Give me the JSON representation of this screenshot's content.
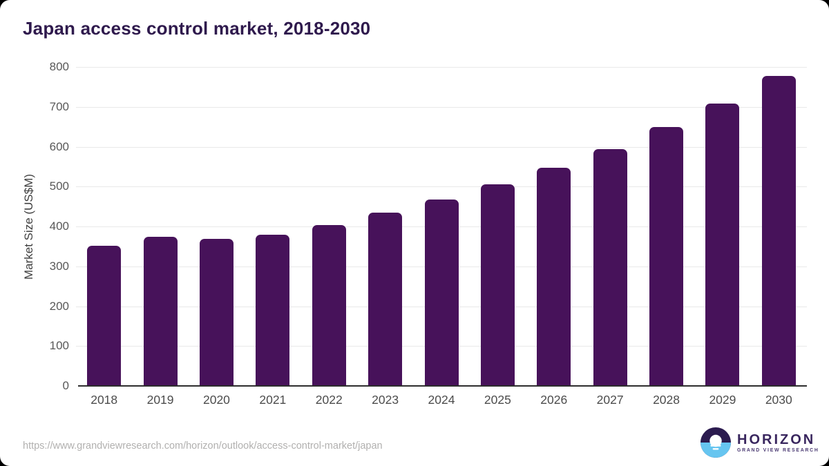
{
  "title": "Japan access control market, 2018-2030",
  "chart_data": {
    "type": "bar",
    "title": "Japan access control market, 2018-2030",
    "categories": [
      "2018",
      "2019",
      "2020",
      "2021",
      "2022",
      "2023",
      "2024",
      "2025",
      "2026",
      "2027",
      "2028",
      "2029",
      "2030"
    ],
    "values": [
      350,
      372,
      367,
      378,
      402,
      433,
      465,
      504,
      545,
      593,
      647,
      706,
      775
    ],
    "xlabel": "",
    "ylabel": "Market Size (US$M)",
    "ylim": [
      0,
      800
    ],
    "yticks": [
      0,
      100,
      200,
      300,
      400,
      500,
      600,
      700,
      800
    ],
    "grid": true,
    "legend": false,
    "bar_color": "#47125a"
  },
  "colors": {
    "bar": "#47125a",
    "title_text": "#2f1a4d",
    "axis_text": "#585858",
    "gridline": "#e9e9e9",
    "axis_line": "#2d2d2d",
    "url_text": "#b1b0af",
    "logo_dark": "#2b1b4f",
    "logo_blue": "#66c5f0"
  },
  "footer": {
    "source_url": "https://www.grandviewresearch.com/horizon/outlook/access-control-market/japan",
    "logo": {
      "name": "HORIZON",
      "subtitle": "GRAND VIEW RESEARCH"
    }
  }
}
